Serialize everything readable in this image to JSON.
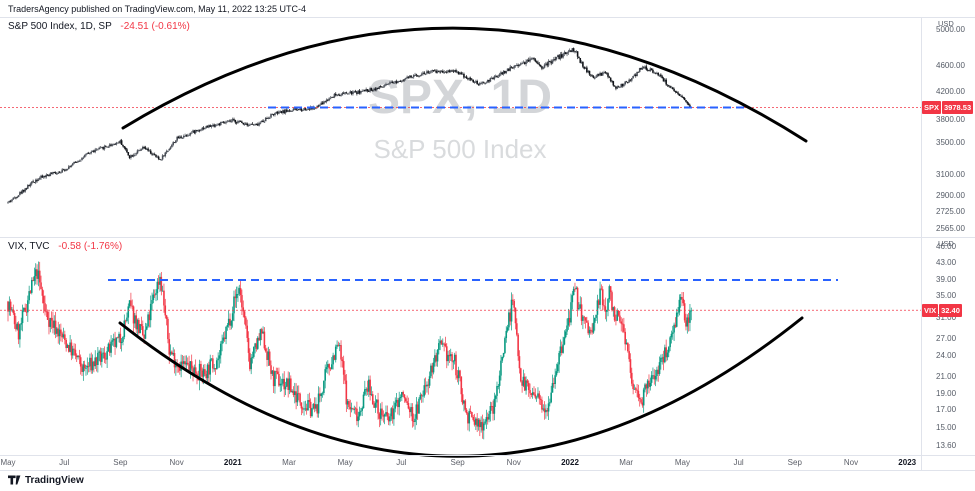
{
  "meta": {
    "published_line": "TradersAgency published on TradingView.com, May 11, 2022 13:25 UTC-4"
  },
  "footer": {
    "brand": "TradingView"
  },
  "colors": {
    "accent_blue": "#2962ff",
    "down_red": "#f23645",
    "up_green": "#089981",
    "spx_candle": "#131722",
    "arc_black": "#000000"
  },
  "panes": {
    "spx": {
      "legend_symbol": "S&P 500 Index, 1D, SP",
      "legend_change": "-24.51 (-0.61%)",
      "watermark_title": "SPX, 1D",
      "watermark_subtitle": "S&P 500 Index",
      "scale_unit": "USD",
      "price_label_symbol": "SPX",
      "price_label_value": "3978.53"
    },
    "vix": {
      "legend_symbol": "VIX, TVC",
      "legend_change": "-0.58 (-1.76%)",
      "scale_unit": "USD",
      "price_label_symbol": "VIX",
      "price_label_value": "32.40"
    }
  },
  "chart_data": [
    {
      "type": "candlestick",
      "title": "S&P 500 Index",
      "timeframe": "1D",
      "exchange": "SP",
      "last": 3978.53,
      "change": -24.51,
      "change_pct": -0.61,
      "scale": "log",
      "grid": false,
      "y_ticks": [
        5000,
        4600,
        4200,
        3800,
        3500,
        3100,
        2900,
        2725,
        2565
      ],
      "y_tick_labels": [
        "5000.00",
        "4600.00",
        "4200.00",
        "3800.00",
        "3500.00",
        "3100.00",
        "2900.00",
        "2725.00",
        "2565.00"
      ],
      "x_ticks": [
        "May",
        "Jul",
        "Sep",
        "Nov",
        "2021",
        "Mar",
        "May",
        "Jul",
        "Sep",
        "Nov",
        "2022",
        "Mar",
        "May",
        "Jul",
        "Sep",
        "Nov",
        "2023"
      ],
      "anchors": [
        [
          0,
          2830
        ],
        [
          21,
          3055
        ],
        [
          42,
          3160
        ],
        [
          63,
          3390
        ],
        [
          85,
          3520
        ],
        [
          92,
          3330
        ],
        [
          103,
          3440
        ],
        [
          115,
          3290
        ],
        [
          128,
          3560
        ],
        [
          148,
          3700
        ],
        [
          170,
          3790
        ],
        [
          188,
          3730
        ],
        [
          200,
          3880
        ],
        [
          212,
          3935
        ],
        [
          233,
          3975
        ],
        [
          247,
          4160
        ],
        [
          265,
          4200
        ],
        [
          280,
          4260
        ],
        [
          298,
          4390
        ],
        [
          318,
          4510
        ],
        [
          338,
          4530
        ],
        [
          357,
          4310
        ],
        [
          368,
          4420
        ],
        [
          383,
          4600
        ],
        [
          398,
          4690
        ],
        [
          404,
          4580
        ],
        [
          414,
          4680
        ],
        [
          428,
          4790
        ],
        [
          442,
          4420
        ],
        [
          452,
          4500
        ],
        [
          460,
          4250
        ],
        [
          472,
          4400
        ],
        [
          480,
          4590
        ],
        [
          492,
          4480
        ],
        [
          505,
          4180
        ],
        [
          513,
          4080
        ],
        [
          517,
          3978.53
        ]
      ],
      "annotations": {
        "dome_arc": "black parabolic arc drawn over the market top",
        "dashed_resistance_level": 3978.53,
        "last_price_line": 3978.53
      }
    },
    {
      "type": "candlestick",
      "title": "VIX",
      "exchange": "TVC",
      "last": 32.4,
      "change": -0.58,
      "change_pct": -1.76,
      "scale": "log",
      "grid": false,
      "y_ticks": [
        46,
        43,
        39,
        35,
        31,
        27,
        24,
        21,
        19,
        17,
        15,
        13.6
      ],
      "y_tick_labels": [
        "46.00",
        "43.00",
        "39.00",
        "35.00",
        "31.00",
        "27.00",
        "24.00",
        "21.00",
        "19.00",
        "17.00",
        "15.00",
        "13.60"
      ],
      "x_ticks": [
        "May",
        "Jul",
        "Sep",
        "Nov",
        "2021",
        "Mar",
        "May",
        "Jul",
        "Sep",
        "Nov",
        "2022",
        "Mar",
        "May",
        "Jul",
        "Sep",
        "Nov",
        "2023"
      ],
      "anchors": [
        [
          0,
          34
        ],
        [
          8,
          28
        ],
        [
          22,
          41
        ],
        [
          28,
          32
        ],
        [
          42,
          27
        ],
        [
          57,
          22
        ],
        [
          72,
          24
        ],
        [
          85,
          27
        ],
        [
          92,
          33
        ],
        [
          103,
          27
        ],
        [
          115,
          40
        ],
        [
          122,
          25
        ],
        [
          128,
          23
        ],
        [
          148,
          21.5
        ],
        [
          160,
          24
        ],
        [
          170,
          33
        ],
        [
          175,
          37
        ],
        [
          183,
          23
        ],
        [
          192,
          28
        ],
        [
          200,
          21
        ],
        [
          212,
          20
        ],
        [
          225,
          17.5
        ],
        [
          233,
          17
        ],
        [
          240,
          21
        ],
        [
          250,
          26
        ],
        [
          257,
          17.5
        ],
        [
          265,
          16.5
        ],
        [
          272,
          20
        ],
        [
          280,
          17
        ],
        [
          288,
          15.8
        ],
        [
          298,
          19
        ],
        [
          307,
          16
        ],
        [
          318,
          21
        ],
        [
          327,
          25.5
        ],
        [
          338,
          23
        ],
        [
          347,
          16.5
        ],
        [
          357,
          15.2
        ],
        [
          368,
          17.5
        ],
        [
          374,
          24
        ],
        [
          378,
          30
        ],
        [
          382,
          34
        ],
        [
          388,
          21
        ],
        [
          398,
          18.5
        ],
        [
          408,
          17.5
        ],
        [
          420,
          26
        ],
        [
          429,
          36
        ],
        [
          436,
          30
        ],
        [
          442,
          28
        ],
        [
          448,
          36
        ],
        [
          452,
          32
        ],
        [
          455,
          36
        ],
        [
          460,
          31
        ],
        [
          466,
          29
        ],
        [
          472,
          20
        ],
        [
          480,
          18.5
        ],
        [
          488,
          21
        ],
        [
          494,
          23
        ],
        [
          500,
          26
        ],
        [
          505,
          31
        ],
        [
          509,
          34
        ],
        [
          513,
          30
        ],
        [
          517,
          32.4
        ]
      ],
      "annotations": {
        "cup_arc": "black parabolic arc drawn under the volatility base",
        "dashed_resistance_level": 39,
        "last_price_line": 32.4
      }
    }
  ]
}
